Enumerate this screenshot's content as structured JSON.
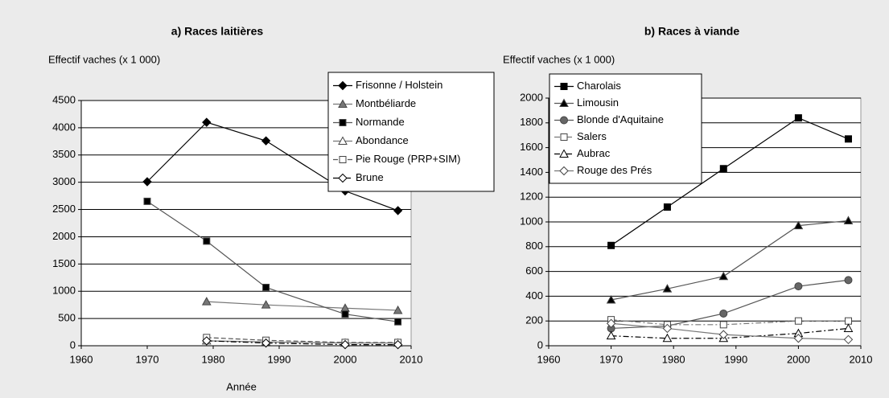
{
  "chart_data": [
    {
      "type": "line",
      "title": "a) Races laitières",
      "ylabel": "Effectif vaches (x 1 000)",
      "xlabel": "Année",
      "x": [
        1970,
        1979,
        1988,
        2000,
        2008
      ],
      "series": [
        {
          "name": "Frisonne / Holstein",
          "color": "#000000",
          "marker": "diamond",
          "marker_fill": "#000000",
          "dash": "solid",
          "values": [
            3010,
            4100,
            3760,
            2840,
            2480
          ]
        },
        {
          "name": "Montbéliarde",
          "color": "#777777",
          "marker": "triangle",
          "marker_fill": "#777777",
          "dash": "solid",
          "values": [
            null,
            810,
            750,
            690,
            650
          ]
        },
        {
          "name": "Normande",
          "color": "#555555",
          "marker": "square",
          "marker_fill": "#000000",
          "dash": "solid",
          "values": [
            2650,
            1920,
            1070,
            580,
            440
          ]
        },
        {
          "name": "Abondance",
          "color": "#777777",
          "marker": "triangle",
          "marker_fill": "#ffffff",
          "dash": "solid",
          "values": [
            null,
            90,
            70,
            50,
            50
          ]
        },
        {
          "name": "Pie Rouge (PRP+SIM)",
          "color": "#555555",
          "marker": "square",
          "marker_fill": "#ffffff",
          "dash": "dash",
          "values": [
            null,
            150,
            100,
            60,
            60
          ]
        },
        {
          "name": "Brune",
          "color": "#000000",
          "marker": "diamond",
          "marker_fill": "#ffffff",
          "dash": "dashdot",
          "values": [
            null,
            90,
            50,
            20,
            20
          ]
        }
      ],
      "xlim": [
        1960,
        2010
      ],
      "xticks": [
        1960,
        1970,
        1980,
        1990,
        2000,
        2010
      ],
      "ylim": [
        0,
        4500
      ],
      "yticks": [
        0,
        500,
        1000,
        1500,
        2000,
        2500,
        3000,
        3500,
        4000,
        4500
      ],
      "grid": true
    },
    {
      "type": "line",
      "title": "b) Races à viande",
      "ylabel": "Effectif vaches (x 1 000)",
      "x": [
        1970,
        1979,
        1988,
        2000,
        2008
      ],
      "series": [
        {
          "name": "Charolais",
          "color": "#000000",
          "marker": "square",
          "marker_fill": "#000000",
          "dash": "solid",
          "values": [
            810,
            1120,
            1430,
            1840,
            1670
          ]
        },
        {
          "name": "Limousin",
          "color": "#555555",
          "marker": "triangle",
          "marker_fill": "#000000",
          "dash": "solid",
          "values": [
            370,
            460,
            560,
            970,
            1010
          ]
        },
        {
          "name": "Blonde d'Aquitaine",
          "color": "#555555",
          "marker": "circle",
          "marker_fill": "#666666",
          "dash": "solid",
          "values": [
            140,
            160,
            260,
            480,
            530
          ]
        },
        {
          "name": "Salers",
          "color": "#777777",
          "marker": "square",
          "marker_fill": "#ffffff",
          "dash": "dashdot",
          "values": [
            210,
            170,
            170,
            200,
            200
          ]
        },
        {
          "name": "Aubrac",
          "color": "#000000",
          "marker": "triangle",
          "marker_fill": "#ffffff",
          "dash": "dashdot",
          "values": [
            80,
            60,
            60,
            100,
            140
          ]
        },
        {
          "name": "Rouge des Prés",
          "color": "#777777",
          "marker": "diamond",
          "marker_fill": "#ffffff",
          "dash": "solid",
          "values": [
            180,
            140,
            90,
            60,
            50
          ]
        }
      ],
      "xlim": [
        1960,
        2010
      ],
      "xticks": [
        1960,
        1970,
        1980,
        1990,
        2000,
        2010
      ],
      "ylim": [
        0,
        2000
      ],
      "yticks": [
        0,
        200,
        400,
        600,
        800,
        1000,
        1200,
        1400,
        1600,
        1800,
        2000
      ],
      "grid": true
    }
  ]
}
